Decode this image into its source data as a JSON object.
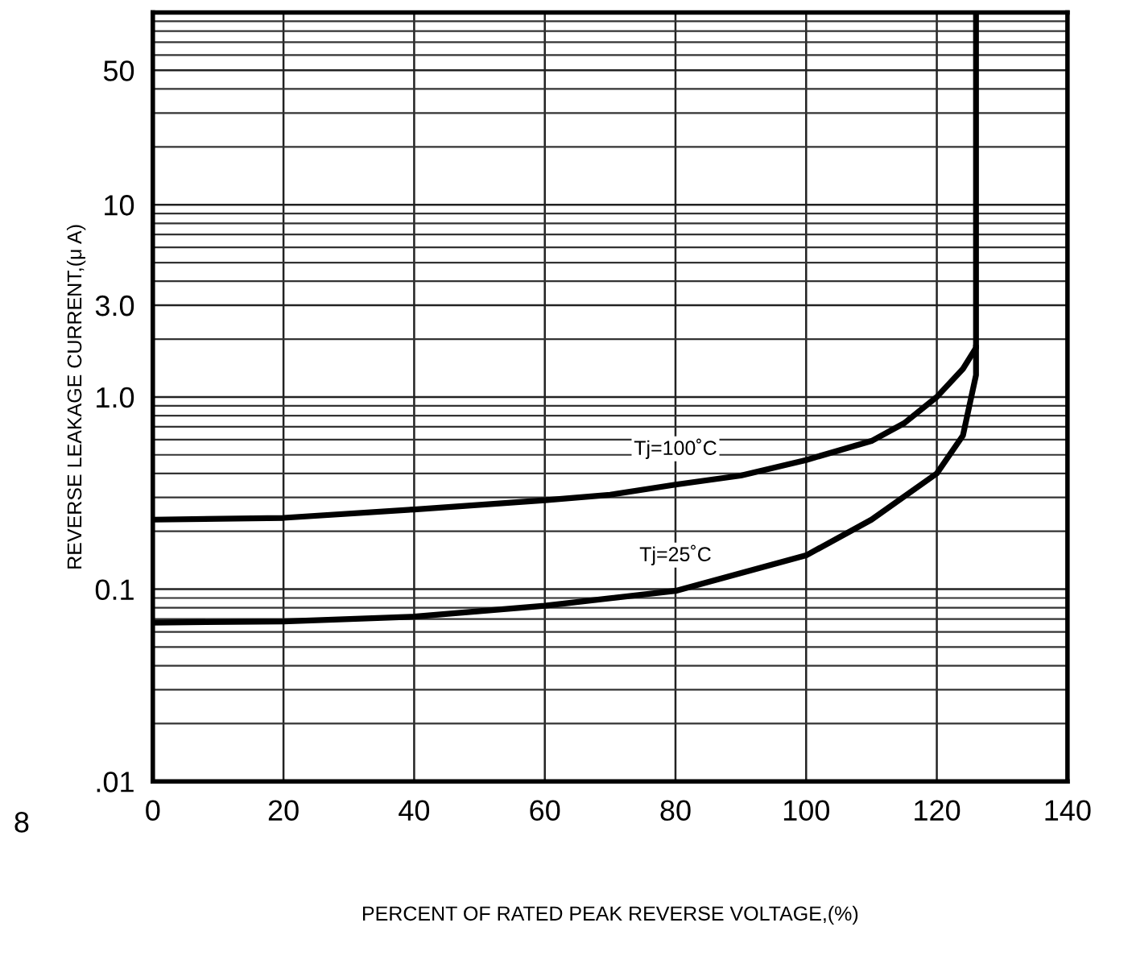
{
  "chart_data": {
    "type": "line",
    "xlabel": "PERCENT OF RATED PEAK REVERSE VOLTAGE,(%)",
    "ylabel": "REVERSE LEAKAGE CURRENT,(μ A)",
    "series": [
      {
        "name": "Tj=100˚C",
        "color": "#000000",
        "x": [
          0,
          20,
          40,
          60,
          70,
          80,
          90,
          100,
          110,
          115,
          120,
          124,
          126,
          126
        ],
        "values": [
          0.23,
          0.235,
          0.26,
          0.29,
          0.31,
          0.35,
          0.39,
          0.47,
          0.59,
          0.73,
          1.0,
          1.4,
          1.8,
          100
        ]
      },
      {
        "name": "Tj=25˚C",
        "color": "#000000",
        "x": [
          0,
          20,
          40,
          60,
          80,
          100,
          110,
          120,
          124,
          126,
          126
        ],
        "values": [
          0.067,
          0.068,
          0.072,
          0.082,
          0.098,
          0.15,
          0.23,
          0.4,
          0.63,
          1.3,
          1.8
        ]
      }
    ],
    "log": "y",
    "xlim": [
      0,
      140
    ],
    "xticks": [
      0,
      20,
      40,
      60,
      80,
      100,
      120,
      140
    ],
    "ylim": [
      0.01,
      100
    ],
    "yticks": [
      {
        "value": 0.01,
        "label": ".01"
      },
      {
        "value": 0.1,
        "label": "0.1"
      },
      {
        "value": 1,
        "label": "1.0"
      },
      {
        "value": 3,
        "label": "3.0"
      },
      10,
      50
    ],
    "grid": true,
    "marker": "none",
    "line_style": "solid",
    "annotations": [
      "8"
    ]
  }
}
